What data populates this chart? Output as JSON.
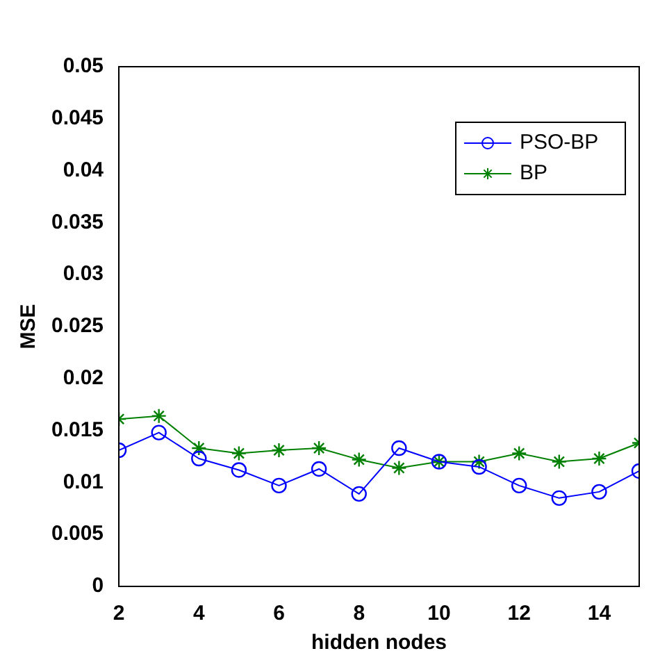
{
  "chart_data": {
    "type": "line",
    "xlabel": "hidden nodes",
    "ylabel": "MSE",
    "x": [
      2,
      3,
      4,
      5,
      6,
      7,
      8,
      9,
      10,
      11,
      12,
      13,
      14,
      15
    ],
    "series": [
      {
        "name": "PSO-BP",
        "color": "#0000ff",
        "marker": "circle",
        "values": [
          0.0131,
          0.0148,
          0.0123,
          0.0112,
          0.0097,
          0.0113,
          0.0089,
          0.0133,
          0.012,
          0.0115,
          0.0097,
          0.0085,
          0.0091,
          0.0111
        ]
      },
      {
        "name": "BP",
        "color": "#008000",
        "marker": "cross",
        "values": [
          0.0161,
          0.0164,
          0.0133,
          0.0128,
          0.0131,
          0.0133,
          0.0122,
          0.0114,
          0.012,
          0.012,
          0.0128,
          0.012,
          0.0123,
          0.0138
        ]
      }
    ],
    "xlim": [
      2,
      15
    ],
    "xticks": [
      2,
      4,
      6,
      8,
      10,
      12,
      14
    ],
    "ylim": [
      0,
      0.05
    ],
    "yticks": [
      0,
      0.005,
      0.01,
      0.015,
      0.02,
      0.025,
      0.03,
      0.035,
      0.04,
      0.045,
      0.05
    ],
    "grid": false,
    "legend": "top right",
    "line_style": "solid"
  }
}
